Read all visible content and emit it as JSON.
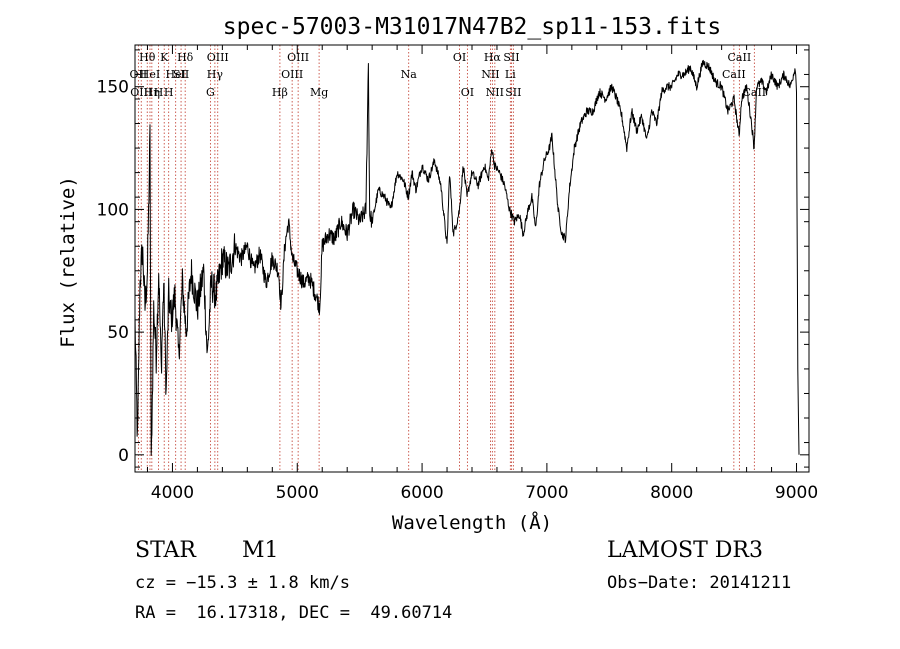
{
  "chart_data": {
    "type": "line",
    "title": "spec-57003-M31017N47B2_sp11-153.fits",
    "xlabel": "Wavelength (Å)",
    "ylabel": "Flux (relative)",
    "xlim": [
      3700,
      9100
    ],
    "ylim": [
      -7,
      167
    ],
    "xticks": [
      4000,
      5000,
      6000,
      7000,
      8000,
      9000
    ],
    "xtick_labels": [
      "4000",
      "5000",
      "6000",
      "7000",
      "8000",
      "9000"
    ],
    "yticks": [
      0,
      50,
      100,
      150
    ],
    "ytick_labels": [
      "0",
      "50",
      "100",
      "150"
    ],
    "grid": false,
    "series": [
      {
        "name": "flux",
        "anchors": [
          [
            3700,
            55
          ],
          [
            3720,
            5
          ],
          [
            3740,
            70
          ],
          [
            3760,
            85
          ],
          [
            3780,
            60
          ],
          [
            3800,
            75
          ],
          [
            3820,
            130
          ],
          [
            3830,
            -5
          ],
          [
            3850,
            60
          ],
          [
            3870,
            40
          ],
          [
            3890,
            75
          ],
          [
            3910,
            35
          ],
          [
            3930,
            70
          ],
          [
            3950,
            25
          ],
          [
            3970,
            65
          ],
          [
            3990,
            55
          ],
          [
            4020,
            65
          ],
          [
            4050,
            40
          ],
          [
            4080,
            70
          ],
          [
            4110,
            50
          ],
          [
            4150,
            75
          ],
          [
            4200,
            60
          ],
          [
            4250,
            75
          ],
          [
            4280,
            40
          ],
          [
            4310,
            70
          ],
          [
            4350,
            65
          ],
          [
            4400,
            80
          ],
          [
            4450,
            75
          ],
          [
            4500,
            85
          ],
          [
            4550,
            80
          ],
          [
            4600,
            85
          ],
          [
            4650,
            75
          ],
          [
            4700,
            82
          ],
          [
            4750,
            70
          ],
          [
            4800,
            80
          ],
          [
            4850,
            75
          ],
          [
            4870,
            60
          ],
          [
            4900,
            85
          ],
          [
            4930,
            95
          ],
          [
            4960,
            80
          ],
          [
            5000,
            75
          ],
          [
            5050,
            70
          ],
          [
            5100,
            72
          ],
          [
            5150,
            65
          ],
          [
            5180,
            60
          ],
          [
            5200,
            85
          ],
          [
            5250,
            90
          ],
          [
            5300,
            88
          ],
          [
            5350,
            95
          ],
          [
            5400,
            90
          ],
          [
            5450,
            100
          ],
          [
            5500,
            95
          ],
          [
            5550,
            100
          ],
          [
            5570,
            160
          ],
          [
            5580,
            98
          ],
          [
            5600,
            95
          ],
          [
            5650,
            108
          ],
          [
            5700,
            105
          ],
          [
            5750,
            100
          ],
          [
            5800,
            115
          ],
          [
            5850,
            112
          ],
          [
            5890,
            105
          ],
          [
            5920,
            115
          ],
          [
            5950,
            108
          ],
          [
            6000,
            118
          ],
          [
            6050,
            112
          ],
          [
            6100,
            120
          ],
          [
            6150,
            110
          ],
          [
            6200,
            85
          ],
          [
            6220,
            115
          ],
          [
            6250,
            90
          ],
          [
            6280,
            95
          ],
          [
            6300,
            100
          ],
          [
            6330,
            118
          ],
          [
            6360,
            105
          ],
          [
            6400,
            115
          ],
          [
            6450,
            110
          ],
          [
            6500,
            118
          ],
          [
            6530,
            112
          ],
          [
            6560,
            125
          ],
          [
            6580,
            118
          ],
          [
            6620,
            115
          ],
          [
            6660,
            110
          ],
          [
            6700,
            100
          ],
          [
            6740,
            95
          ],
          [
            6780,
            98
          ],
          [
            6810,
            90
          ],
          [
            6850,
            100
          ],
          [
            6880,
            105
          ],
          [
            6910,
            92
          ],
          [
            6940,
            110
          ],
          [
            6980,
            120
          ],
          [
            7020,
            125
          ],
          [
            7040,
            130
          ],
          [
            7060,
            118
          ],
          [
            7090,
            100
          ],
          [
            7120,
            90
          ],
          [
            7150,
            88
          ],
          [
            7180,
            108
          ],
          [
            7220,
            125
          ],
          [
            7270,
            135
          ],
          [
            7320,
            140
          ],
          [
            7370,
            140
          ],
          [
            7420,
            148
          ],
          [
            7470,
            145
          ],
          [
            7520,
            150
          ],
          [
            7560,
            145
          ],
          [
            7600,
            138
          ],
          [
            7640,
            125
          ],
          [
            7680,
            140
          ],
          [
            7720,
            132
          ],
          [
            7760,
            138
          ],
          [
            7800,
            128
          ],
          [
            7840,
            140
          ],
          [
            7880,
            135
          ],
          [
            7920,
            148
          ],
          [
            7960,
            150
          ],
          [
            8000,
            150
          ],
          [
            8050,
            155
          ],
          [
            8100,
            155
          ],
          [
            8150,
            158
          ],
          [
            8200,
            150
          ],
          [
            8250,
            160
          ],
          [
            8300,
            158
          ],
          [
            8350,
            152
          ],
          [
            8400,
            150
          ],
          [
            8450,
            140
          ],
          [
            8500,
            145
          ],
          [
            8540,
            130
          ],
          [
            8560,
            145
          ],
          [
            8600,
            150
          ],
          [
            8640,
            135
          ],
          [
            8660,
            125
          ],
          [
            8680,
            150
          ],
          [
            8720,
            152
          ],
          [
            8760,
            148
          ],
          [
            8800,
            155
          ],
          [
            8850,
            150
          ],
          [
            8900,
            155
          ],
          [
            8950,
            150
          ],
          [
            8990,
            158
          ],
          [
            9000,
            148
          ],
          [
            9010,
            35
          ],
          [
            9020,
            0
          ]
        ]
      }
    ],
    "lines": [
      {
        "wavelength": 3727,
        "label": "OII",
        "row": 1
      },
      {
        "wavelength": 3750,
        "label": "OIII",
        "row": 2
      },
      {
        "wavelength": 3798,
        "label": "Hθ",
        "row": 0
      },
      {
        "wavelength": 3820,
        "label": "HeI",
        "row": 1
      },
      {
        "wavelength": 3835,
        "label": "Hη",
        "row": 2
      },
      {
        "wavelength": 3889,
        "label": "H",
        "row": 2
      },
      {
        "wavelength": 3934,
        "label": "K",
        "row": 0
      },
      {
        "wavelength": 3970,
        "label": "H",
        "row": 2
      },
      {
        "wavelength": 4026,
        "label": "HeI",
        "row": 1
      },
      {
        "wavelength": 4069,
        "label": "SII",
        "row": 1
      },
      {
        "wavelength": 4102,
        "label": "Hδ",
        "row": 0
      },
      {
        "wavelength": 4304,
        "label": "G",
        "row": 2
      },
      {
        "wavelength": 4340,
        "label": "Hγ",
        "row": 1
      },
      {
        "wavelength": 4363,
        "label": "OIII",
        "row": 0
      },
      {
        "wavelength": 4861,
        "label": "Hβ",
        "row": 2
      },
      {
        "wavelength": 4959,
        "label": "OIII",
        "row": 1
      },
      {
        "wavelength": 5007,
        "label": "OIII",
        "row": 0
      },
      {
        "wavelength": 5175,
        "label": "Mg",
        "row": 2
      },
      {
        "wavelength": 5893,
        "label": "Na",
        "row": 1
      },
      {
        "wavelength": 6300,
        "label": "OI",
        "row": 0
      },
      {
        "wavelength": 6363,
        "label": "OI",
        "row": 2
      },
      {
        "wavelength": 6548,
        "label": "NII",
        "row": 1
      },
      {
        "wavelength": 6563,
        "label": "Hα",
        "row": 0
      },
      {
        "wavelength": 6583,
        "label": "NII",
        "row": 2
      },
      {
        "wavelength": 6707,
        "label": "Li",
        "row": 1
      },
      {
        "wavelength": 6716,
        "label": "SII",
        "row": 0
      },
      {
        "wavelength": 6731,
        "label": "SII",
        "row": 2
      },
      {
        "wavelength": 8498,
        "label": "CaII",
        "row": 1
      },
      {
        "wavelength": 8542,
        "label": "CaII",
        "row": 0
      },
      {
        "wavelength": 8662,
        "label": "CaII",
        "row": 2
      }
    ]
  },
  "info": {
    "object_class": "STAR",
    "subclass": "M1",
    "survey": "LAMOST DR3",
    "cz": "cz = −15.3 ± 1.8 km/s",
    "obs_date": "Obs−Date: 20141211",
    "radec": "RA =  16.17318, DEC =  49.60714"
  }
}
